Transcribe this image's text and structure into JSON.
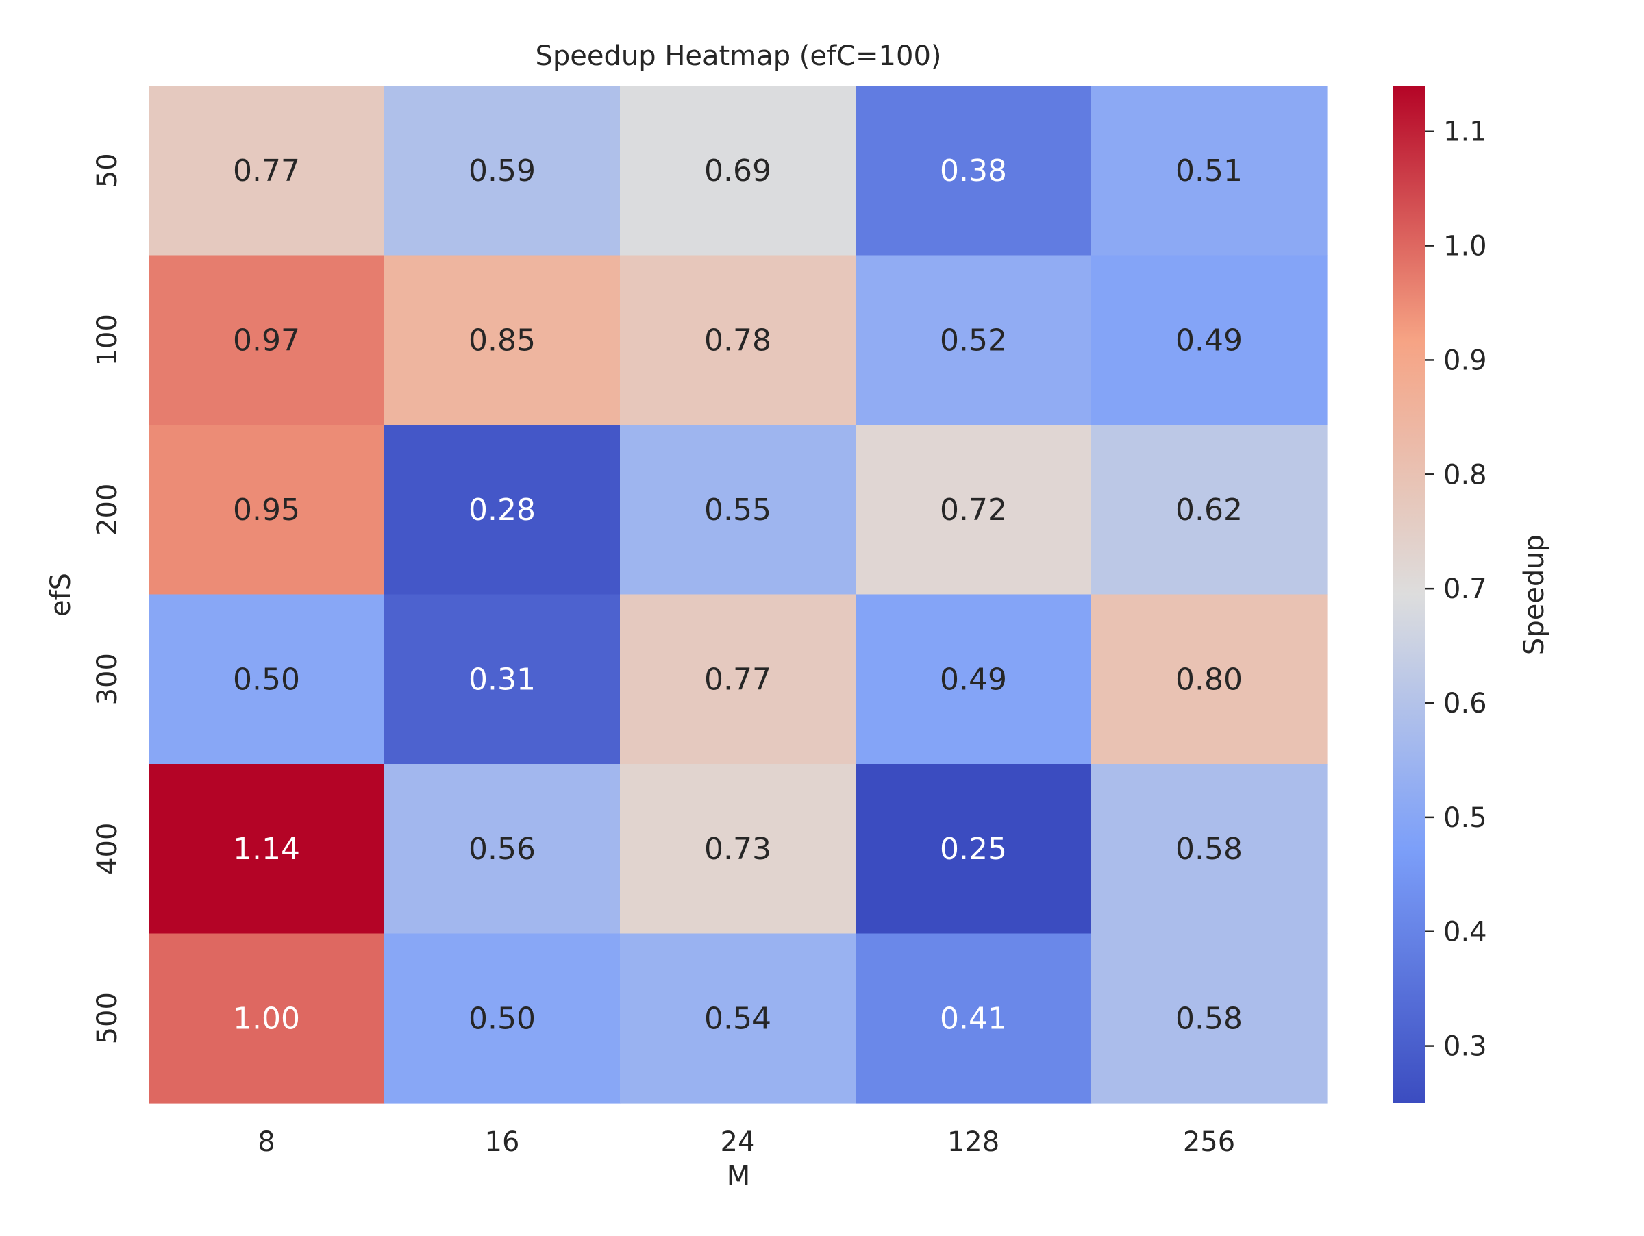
{
  "chart_data": {
    "type": "heatmap",
    "title": "Speedup Heatmap (efC=100)",
    "xlabel": "M",
    "ylabel": "efS",
    "x_categories": [
      "8",
      "16",
      "24",
      "128",
      "256"
    ],
    "y_categories": [
      "50",
      "100",
      "200",
      "300",
      "400",
      "500"
    ],
    "values": [
      [
        0.77,
        0.59,
        0.69,
        0.38,
        0.51
      ],
      [
        0.97,
        0.85,
        0.78,
        0.52,
        0.49
      ],
      [
        0.95,
        0.28,
        0.55,
        0.72,
        0.62
      ],
      [
        0.5,
        0.31,
        0.77,
        0.49,
        0.8
      ],
      [
        1.14,
        0.56,
        0.73,
        0.25,
        0.58
      ],
      [
        1.0,
        0.5,
        0.54,
        0.41,
        0.58
      ]
    ],
    "value_labels": [
      [
        "0.77",
        "0.59",
        "0.69",
        "0.38",
        "0.51"
      ],
      [
        "0.97",
        "0.85",
        "0.78",
        "0.52",
        "0.49"
      ],
      [
        "0.95",
        "0.28",
        "0.55",
        "0.72",
        "0.62"
      ],
      [
        "0.50",
        "0.31",
        "0.77",
        "0.49",
        "0.80"
      ],
      [
        "1.14",
        "0.56",
        "0.73",
        "0.25",
        "0.58"
      ],
      [
        "1.00",
        "0.50",
        "0.54",
        "0.41",
        "0.58"
      ]
    ],
    "colormap": "coolwarm",
    "vmin": 0.25,
    "vmax": 1.14,
    "colorbar": {
      "label": "Speedup",
      "ticks": [
        0.3,
        0.4,
        0.5,
        0.6,
        0.7,
        0.8,
        0.9,
        1.0,
        1.1
      ],
      "tick_labels": [
        "0.3",
        "0.4",
        "0.5",
        "0.6",
        "0.7",
        "0.8",
        "0.9",
        "1.0",
        "1.1"
      ]
    },
    "colors": {
      "text_dark": "#262626",
      "text_light": "#ffffff"
    }
  }
}
